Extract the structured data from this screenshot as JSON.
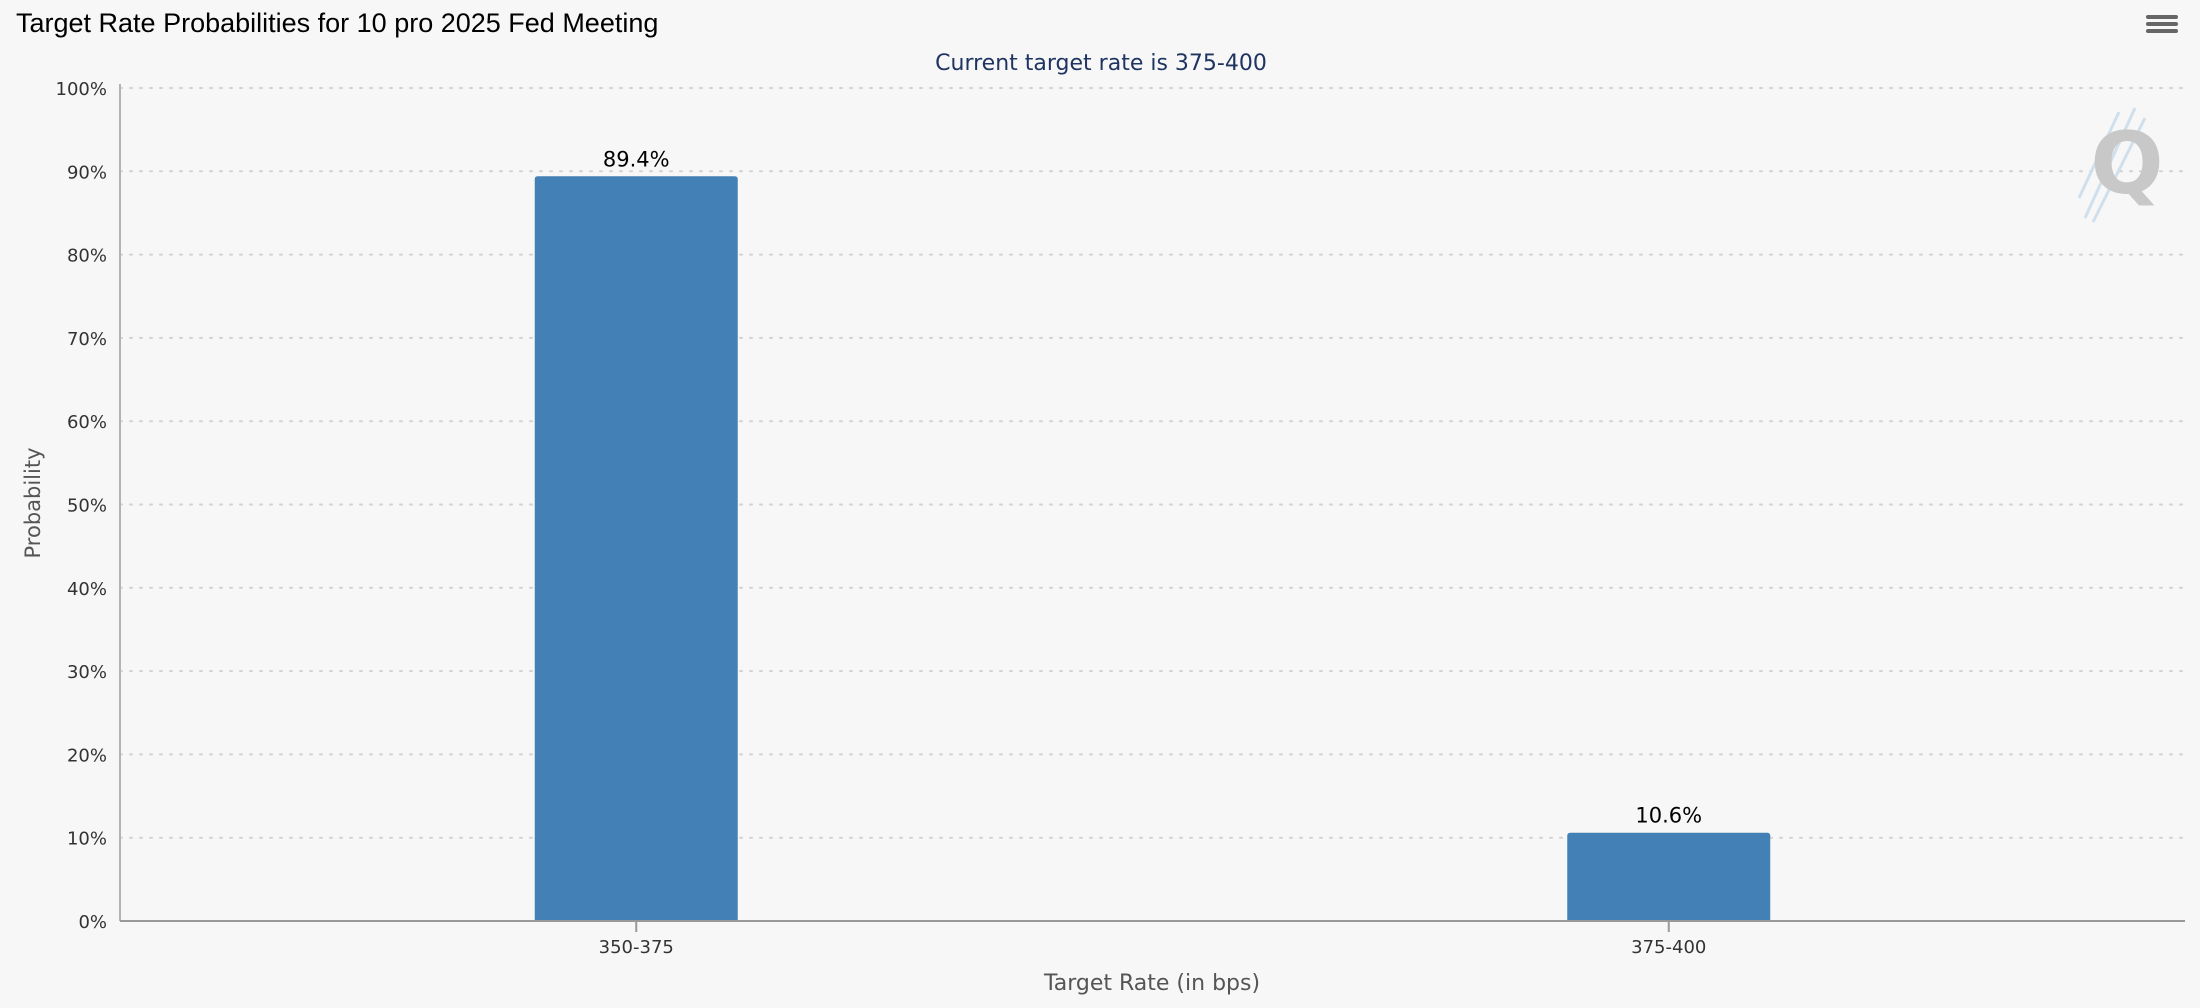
{
  "title": "Target Rate Probabilities for 10 pro 2025 Fed Meeting",
  "subtitle": "Current target rate is 375-400",
  "menu_icon": "hamburger-menu-icon",
  "watermark_icon": "q-logo-icon",
  "colors": {
    "bar": "#4380b6",
    "subtitle": "#1f3461",
    "axis_text": "#333333",
    "gridline": "#d2d2d2"
  },
  "chart_data": {
    "type": "bar",
    "title": "Target Rate Probabilities for 10 pro 2025 Fed Meeting",
    "subtitle": "Current target rate is 375-400",
    "categories": [
      "350-375",
      "375-400"
    ],
    "values": [
      89.4,
      10.6
    ],
    "data_labels": [
      "89.4%",
      "10.6%"
    ],
    "xlabel": "Target Rate (in bps)",
    "ylabel": "Probability",
    "ylim": [
      0,
      100
    ],
    "yticks": [
      0,
      10,
      20,
      30,
      40,
      50,
      60,
      70,
      80,
      90,
      100
    ],
    "ytick_labels": [
      "0%",
      "10%",
      "20%",
      "30%",
      "40%",
      "50%",
      "60%",
      "70%",
      "80%",
      "90%",
      "100%"
    ],
    "grid": true,
    "legend": "none"
  }
}
